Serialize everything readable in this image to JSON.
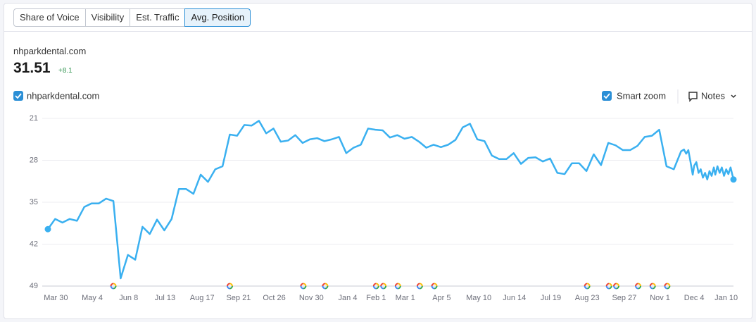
{
  "tabs": [
    "Share of Voice",
    "Visibility",
    "Est. Traffic",
    "Avg. Position"
  ],
  "site": "nhparkdental.com",
  "score": 31.51,
  "change": "+8.1",
  "smart_zoom": "Smart zoom",
  "notes": "Notes",
  "chart_data": {
    "type": "line",
    "x": [
      0,
      1,
      2,
      3,
      4,
      5,
      6,
      7,
      8,
      9,
      10,
      11,
      12,
      13,
      14,
      15,
      16,
      17,
      18,
      19,
      20,
      21,
      22,
      23,
      24,
      25,
      26,
      27,
      28,
      29,
      30,
      31,
      32,
      33,
      34,
      35,
      36,
      37,
      38,
      39,
      40,
      41,
      42,
      43,
      44,
      45,
      46,
      47,
      48,
      49,
      50,
      51,
      52,
      53,
      54,
      55,
      56,
      57,
      58,
      59,
      60,
      61,
      62,
      63,
      64,
      65,
      66,
      67,
      68,
      69,
      70,
      71,
      72,
      73,
      74,
      75,
      76,
      77,
      78,
      79,
      80,
      81,
      82,
      83,
      84,
      85,
      86,
      87,
      87.4,
      87.7,
      88.0,
      88.3,
      88.6,
      88.8,
      89.1,
      89.4,
      89.7,
      90.0,
      90.3,
      90.6,
      90.9,
      91.2,
      91.5,
      91.7,
      92.0,
      92.3,
      92.6,
      92.9,
      93.2,
      93.5,
      93.8,
      94.2
    ],
    "series": [
      {
        "name": "nhparkdental.com",
        "color": "#3ab0f0",
        "values": [
          39.5,
          37.8,
          38.4,
          37.8,
          38.1,
          35.8,
          35.2,
          35.2,
          34.4,
          34.8,
          47.7,
          43.8,
          44.6,
          39.1,
          40.3,
          37.9,
          39.7,
          37.8,
          32.8,
          32.8,
          33.6,
          30.4,
          31.6,
          29.5,
          29.0,
          23.7,
          23.9,
          22.1,
          22.2,
          21.4,
          23.5,
          22.7,
          24.9,
          24.7,
          23.8,
          25.1,
          24.5,
          24.3,
          24.8,
          24.5,
          24.1,
          26.8,
          25.9,
          25.4,
          22.7,
          22.9,
          23.0,
          24.2,
          23.8,
          24.4,
          24.1,
          24.9,
          25.9,
          25.4,
          25.8,
          25.4,
          24.6,
          22.5,
          21.9,
          24.5,
          24.8,
          27.2,
          27.8,
          27.8,
          26.8,
          28.6,
          27.6,
          27.5,
          28.2,
          27.7,
          30.1,
          30.3,
          28.5,
          28.5,
          29.8,
          27.0,
          28.8,
          25.1,
          25.5,
          26.3,
          26.3,
          25.6,
          24.1,
          23.9,
          22.9,
          29.0,
          29.5,
          26.5,
          26.2,
          26.9,
          26.3,
          28.3,
          30.4,
          28.9,
          28.3,
          30.1,
          29.5,
          30.9,
          30.1,
          31.2,
          29.8,
          30.6,
          29.2,
          30.4,
          29.0,
          30.1,
          29.2,
          30.6,
          29.5,
          30.3,
          29.2,
          31.2
        ]
      }
    ],
    "ylim": [
      49,
      21
    ],
    "yticks": [
      21,
      28,
      35,
      42,
      49
    ],
    "xlim": [
      0,
      94.2
    ],
    "xticks": [
      {
        "value": 1.1,
        "label": "Mar 30"
      },
      {
        "value": 6.1,
        "label": "May 4"
      },
      {
        "value": 11.1,
        "label": "Jun 8"
      },
      {
        "value": 16.1,
        "label": "Jul 13"
      },
      {
        "value": 21.2,
        "label": "Aug 17"
      },
      {
        "value": 26.2,
        "label": "Sep 21"
      },
      {
        "value": 31.1,
        "label": "Oct 26"
      },
      {
        "value": 36.2,
        "label": "Nov 30"
      },
      {
        "value": 41.2,
        "label": "Jan 4"
      },
      {
        "value": 45.1,
        "label": "Feb 1"
      },
      {
        "value": 49.1,
        "label": "Mar 1"
      },
      {
        "value": 54.1,
        "label": "Apr 5"
      },
      {
        "value": 59.2,
        "label": "May 10"
      },
      {
        "value": 64.1,
        "label": "Jun 14"
      },
      {
        "value": 69.1,
        "label": "Jul 19"
      },
      {
        "value": 74.1,
        "label": "Aug 23"
      },
      {
        "value": 79.2,
        "label": "Sep 27"
      },
      {
        "value": 84.1,
        "label": "Nov 1"
      },
      {
        "value": 88.8,
        "label": "Dec 4"
      },
      {
        "value": 93.2,
        "label": "Jan 10"
      }
    ],
    "grid": true,
    "events": [
      9.0,
      25.0,
      35.1,
      38.1,
      45.1,
      46.1,
      48.1,
      51.1,
      53.1,
      74.1,
      77.1,
      78.1,
      81.1,
      83.1,
      85.1
    ]
  }
}
